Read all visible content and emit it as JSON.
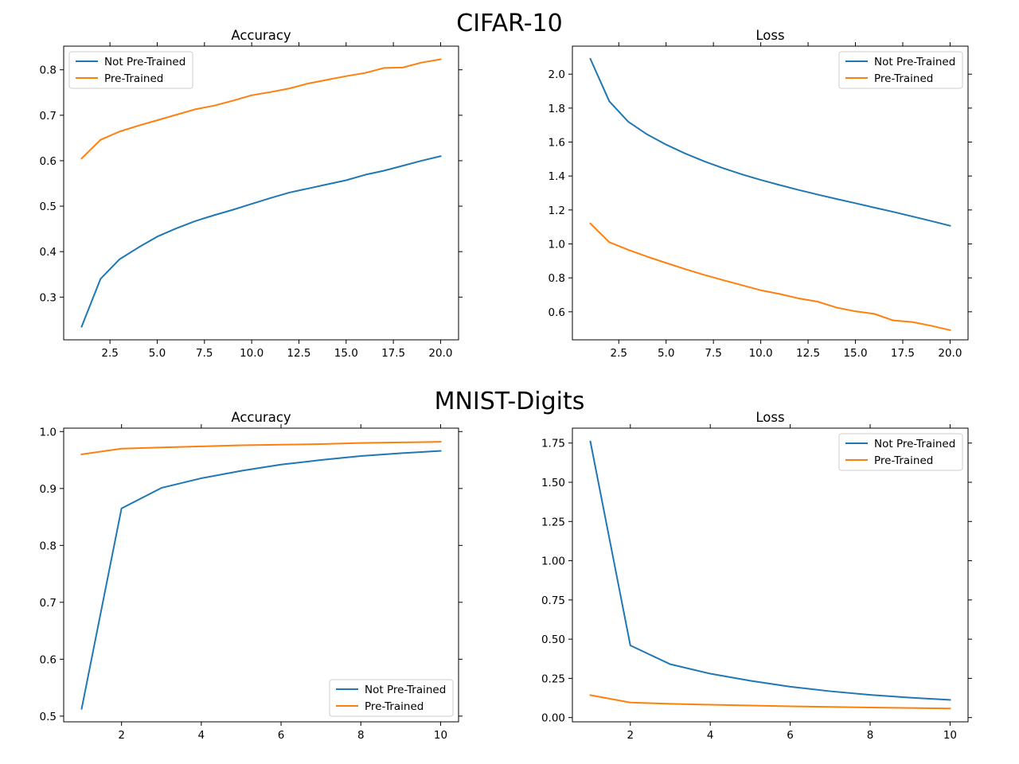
{
  "figure": {
    "row_titles": [
      "CIFAR-10",
      "MNIST-Digits"
    ]
  },
  "colors": {
    "not_pretrained": "#1f77b4",
    "pretrained": "#ff7f0e"
  },
  "chart_data": [
    {
      "type": "line",
      "group": "CIFAR-10",
      "title": "Accuracy",
      "xlabel": "",
      "ylabel": "",
      "x": [
        1,
        2,
        3,
        4,
        5,
        6,
        7,
        8,
        9,
        10,
        11,
        12,
        13,
        14,
        15,
        16,
        17,
        18,
        19,
        20
      ],
      "series": [
        {
          "name": "Not Pre-Trained",
          "values": [
            0.235,
            0.34,
            0.383,
            0.409,
            0.433,
            0.451,
            0.467,
            0.48,
            0.492,
            0.505,
            0.518,
            0.53,
            0.539,
            0.548,
            0.557,
            0.569,
            0.578,
            0.589,
            0.6,
            0.61
          ]
        },
        {
          "name": "Pre-Trained",
          "values": [
            0.605,
            0.646,
            0.664,
            0.677,
            0.689,
            0.701,
            0.713,
            0.721,
            0.732,
            0.744,
            0.751,
            0.759,
            0.77,
            0.778,
            0.786,
            0.793,
            0.804,
            0.805,
            0.816,
            0.823
          ]
        }
      ],
      "xlim": [
        0.05,
        20.95
      ],
      "ylim": [
        0.206,
        0.852
      ],
      "xticks": [
        2.5,
        5.0,
        7.5,
        10.0,
        12.5,
        15.0,
        17.5,
        20.0
      ],
      "xtick_labels": [
        "2.5",
        "5.0",
        "7.5",
        "10.0",
        "12.5",
        "15.0",
        "17.5",
        "20.0"
      ],
      "yticks": [
        0.3,
        0.4,
        0.5,
        0.6,
        0.7,
        0.8
      ],
      "ytick_labels": [
        "0.3",
        "0.4",
        "0.5",
        "0.6",
        "0.7",
        "0.8"
      ],
      "legend": "top-left",
      "grid": false
    },
    {
      "type": "line",
      "group": "CIFAR-10",
      "title": "Loss",
      "xlabel": "",
      "ylabel": "",
      "x": [
        1,
        2,
        3,
        4,
        5,
        6,
        7,
        8,
        9,
        10,
        11,
        12,
        13,
        14,
        15,
        16,
        17,
        18,
        19,
        20
      ],
      "series": [
        {
          "name": "Not Pre-Trained",
          "values": [
            2.09,
            1.84,
            1.72,
            1.645,
            1.585,
            1.533,
            1.487,
            1.447,
            1.41,
            1.377,
            1.347,
            1.318,
            1.291,
            1.265,
            1.24,
            1.214,
            1.189,
            1.162,
            1.135,
            1.107
          ]
        },
        {
          "name": "Pre-Trained",
          "values": [
            1.12,
            1.01,
            0.965,
            0.925,
            0.888,
            0.852,
            0.818,
            0.787,
            0.757,
            0.727,
            0.705,
            0.679,
            0.66,
            0.625,
            0.603,
            0.588,
            0.549,
            0.54,
            0.518,
            0.492
          ]
        }
      ],
      "xlim": [
        0.05,
        20.95
      ],
      "ylim": [
        0.435,
        2.165
      ],
      "xticks": [
        2.5,
        5.0,
        7.5,
        10.0,
        12.5,
        15.0,
        17.5,
        20.0
      ],
      "xtick_labels": [
        "2.5",
        "5.0",
        "7.5",
        "10.0",
        "12.5",
        "15.0",
        "17.5",
        "20.0"
      ],
      "yticks": [
        0.6,
        0.8,
        1.0,
        1.2,
        1.4,
        1.6,
        1.8,
        2.0
      ],
      "ytick_labels": [
        "0.6",
        "0.8",
        "1.0",
        "1.2",
        "1.4",
        "1.6",
        "1.8",
        "2.0"
      ],
      "legend": "top-right",
      "grid": false
    },
    {
      "type": "line",
      "group": "MNIST-Digits",
      "title": "Accuracy",
      "xlabel": "",
      "ylabel": "",
      "x": [
        1,
        2,
        3,
        4,
        5,
        6,
        7,
        8,
        9,
        10
      ],
      "series": [
        {
          "name": "Not Pre-Trained",
          "values": [
            0.513,
            0.865,
            0.901,
            0.918,
            0.931,
            0.942,
            0.95,
            0.957,
            0.962,
            0.966
          ]
        },
        {
          "name": "Pre-Trained",
          "values": [
            0.96,
            0.97,
            0.972,
            0.974,
            0.976,
            0.977,
            0.978,
            0.98,
            0.981,
            0.982
          ]
        }
      ],
      "xlim": [
        0.55,
        10.45
      ],
      "ylim": [
        0.49,
        1.006
      ],
      "xticks": [
        2,
        4,
        6,
        8,
        10
      ],
      "xtick_labels": [
        "2",
        "4",
        "6",
        "8",
        "10"
      ],
      "yticks": [
        0.5,
        0.6,
        0.7,
        0.8,
        0.9,
        1.0
      ],
      "ytick_labels": [
        "0.5",
        "0.6",
        "0.7",
        "0.8",
        "0.9",
        "1.0"
      ],
      "legend": "bottom-right",
      "grid": false
    },
    {
      "type": "line",
      "group": "MNIST-Digits",
      "title": "Loss",
      "xlabel": "",
      "ylabel": "",
      "x": [
        1,
        2,
        3,
        4,
        5,
        6,
        7,
        8,
        9,
        10
      ],
      "series": [
        {
          "name": "Not Pre-Trained",
          "values": [
            1.76,
            0.46,
            0.34,
            0.28,
            0.235,
            0.197,
            0.168,
            0.145,
            0.127,
            0.113
          ]
        },
        {
          "name": "Pre-Trained",
          "values": [
            0.143,
            0.096,
            0.088,
            0.082,
            0.077,
            0.072,
            0.068,
            0.064,
            0.061,
            0.058
          ]
        }
      ],
      "xlim": [
        0.55,
        10.45
      ],
      "ylim": [
        -0.027,
        1.845
      ],
      "xticks": [
        2,
        4,
        6,
        8,
        10
      ],
      "xtick_labels": [
        "2",
        "4",
        "6",
        "8",
        "10"
      ],
      "yticks": [
        0.0,
        0.25,
        0.5,
        0.75,
        1.0,
        1.25,
        1.5,
        1.75
      ],
      "ytick_labels": [
        "0.00",
        "0.25",
        "0.50",
        "0.75",
        "1.00",
        "1.25",
        "1.50",
        "1.75"
      ],
      "legend": "top-right",
      "grid": false
    }
  ]
}
